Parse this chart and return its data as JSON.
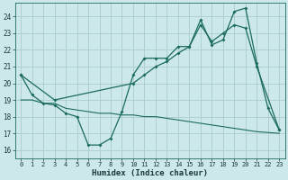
{
  "xlabel": "Humidex (Indice chaleur)",
  "bg_color": "#cce8e8",
  "grid_color": "#aacccc",
  "line_color": "#1a6b5a",
  "xlim": [
    -0.5,
    23.5
  ],
  "ylim": [
    15.5,
    24.8
  ],
  "xticks": [
    0,
    1,
    2,
    3,
    4,
    5,
    6,
    7,
    8,
    9,
    10,
    11,
    12,
    13,
    14,
    15,
    16,
    17,
    18,
    19,
    20,
    21,
    22,
    23
  ],
  "yticks": [
    16,
    17,
    18,
    19,
    20,
    21,
    22,
    23,
    24
  ],
  "line1_x": [
    0,
    1,
    2,
    3,
    4,
    5,
    6,
    7,
    8,
    9,
    10,
    11,
    12,
    13,
    14,
    15,
    16,
    17,
    18,
    19,
    20,
    21,
    22,
    23
  ],
  "line1_y": [
    20.5,
    19.3,
    18.8,
    18.7,
    18.2,
    18.0,
    16.3,
    16.3,
    16.7,
    18.3,
    20.5,
    21.5,
    21.5,
    21.5,
    22.2,
    22.2,
    23.8,
    22.3,
    22.6,
    24.3,
    24.5,
    21.2,
    18.5,
    17.2
  ],
  "line2_x": [
    0,
    3,
    10,
    11,
    12,
    13,
    14,
    15,
    16,
    17,
    18,
    19,
    20,
    21,
    23
  ],
  "line2_y": [
    20.5,
    19.0,
    20.0,
    20.5,
    21.0,
    21.3,
    21.8,
    22.2,
    23.5,
    22.5,
    23.0,
    23.5,
    23.3,
    21.0,
    17.2
  ],
  "line3_x": [
    0,
    1,
    2,
    3,
    4,
    5,
    6,
    7,
    8,
    9,
    10,
    11,
    12,
    13,
    14,
    15,
    16,
    17,
    18,
    19,
    20,
    21,
    22,
    23
  ],
  "line3_y": [
    19.0,
    19.0,
    18.8,
    18.8,
    18.5,
    18.4,
    18.3,
    18.2,
    18.2,
    18.1,
    18.1,
    18.0,
    18.0,
    17.9,
    17.8,
    17.7,
    17.6,
    17.5,
    17.4,
    17.3,
    17.2,
    17.1,
    17.05,
    17.0
  ]
}
